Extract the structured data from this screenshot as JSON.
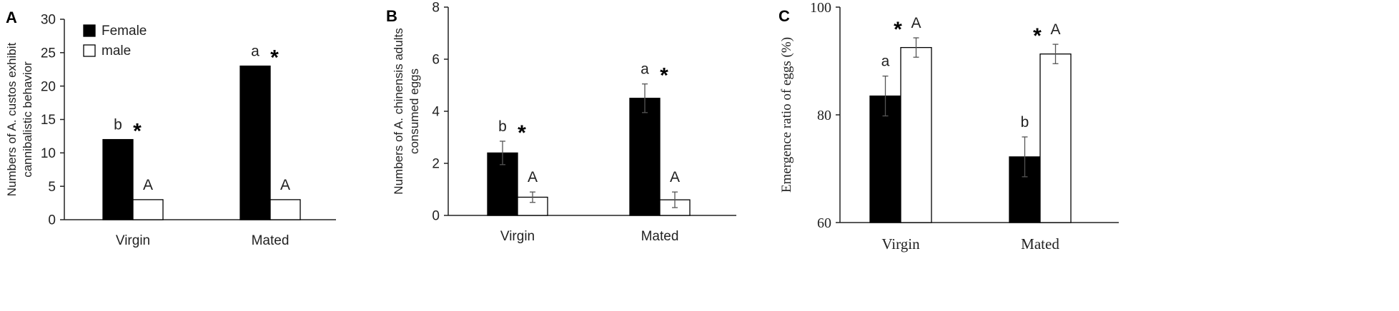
{
  "colors": {
    "female": "#000000",
    "male": "#ffffff",
    "axis": "#222222"
  },
  "chart_data": [
    {
      "panel_label": "A",
      "type": "bar",
      "ylabel_lines": [
        "Numbers of A. custos exhibit",
        "cannibalistic behavior"
      ],
      "categories": [
        "Virgin",
        "Mated"
      ],
      "ylim": [
        0,
        30
      ],
      "yticks": [
        "0",
        "5",
        "10",
        "15",
        "20",
        "25",
        "30"
      ],
      "legend": {
        "placement": "top-left",
        "entries": [
          "Female",
          "male"
        ]
      },
      "series": [
        {
          "name": "Female",
          "values": [
            12,
            23
          ],
          "letters": [
            "b",
            "a"
          ],
          "stars": [
            "*",
            "*"
          ]
        },
        {
          "name": "male",
          "values": [
            3,
            3
          ],
          "letters": [
            "A",
            "A"
          ]
        }
      ]
    },
    {
      "panel_label": "B",
      "type": "bar",
      "ylabel_lines": [
        "Numbers of A. chinensis adults",
        "consumed eggs"
      ],
      "categories": [
        "Virgin",
        "Mated"
      ],
      "ylim": [
        0,
        8
      ],
      "yticks": [
        "0",
        "2",
        "4",
        "6",
        "8"
      ],
      "series": [
        {
          "values": [
            2.4,
            4.5
          ],
          "err": [
            0.45,
            0.55
          ],
          "letters": [
            "b",
            "a"
          ],
          "stars": [
            "*",
            "*"
          ]
        },
        {
          "values": [
            0.7,
            0.6
          ],
          "err": [
            0.2,
            0.3
          ],
          "letters": [
            "A",
            "A"
          ]
        }
      ]
    },
    {
      "panel_label": "C",
      "type": "bar",
      "ylabel_lines": [
        "Emergence ratio of eggs (%)"
      ],
      "categories": [
        "Virgin",
        "Mated"
      ],
      "ylim": [
        60,
        100
      ],
      "yticks": [
        "60",
        "80",
        "100"
      ],
      "series": [
        {
          "values": [
            83.5,
            72.2
          ],
          "err": [
            3.7,
            3.7
          ],
          "letters": [
            "a",
            "b"
          ]
        },
        {
          "values": [
            92.5,
            91.3
          ],
          "err": [
            1.8,
            1.8
          ],
          "letters": [
            "A",
            "A"
          ],
          "stars": [
            "*",
            "*"
          ]
        }
      ]
    }
  ]
}
